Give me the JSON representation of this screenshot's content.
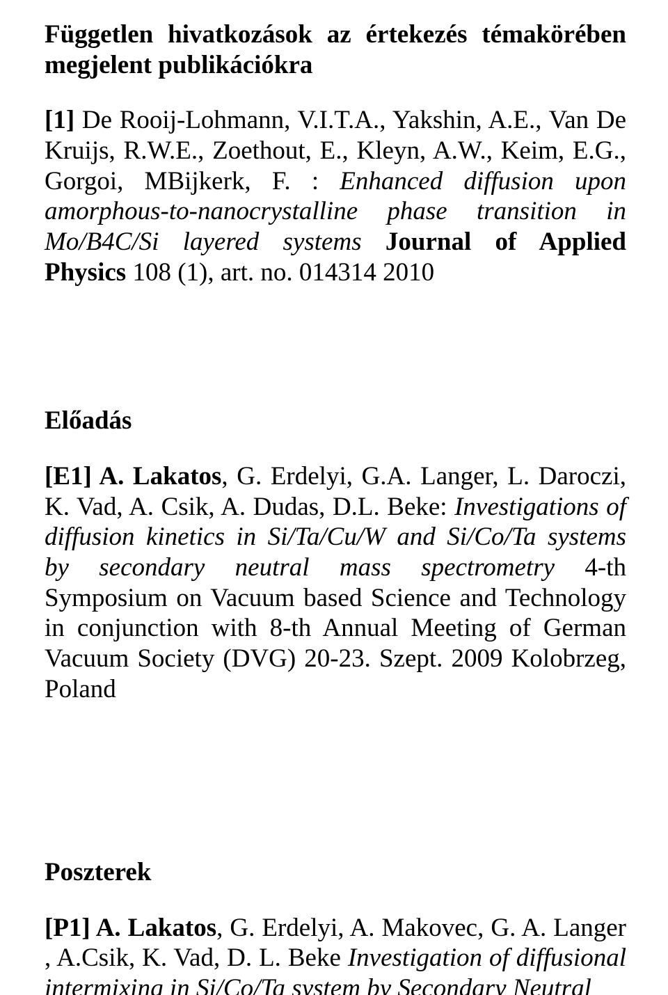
{
  "heading": "Független hivatkozások az értekezés témakörében megjelent publikációkra",
  "ref1": {
    "key": "[1]",
    "authors": " De Rooij-Lohmann, V.I.T.A., Yakshin, A.E., Van De Kruijs, R.W.E., Zoethout, E., Kleyn, A.W., Keim, E.G., Gorgoi, MBijkerk, F. : ",
    "title_italic": "Enhanced diffusion upon amorphous-to-nanocrystalline phase transition in Mo/B4C/Si layered systems",
    "journal_bold": " Journal of Applied Physics",
    "tail": " 108 (1), art. no. 014314 2010"
  },
  "section_presentation": "Előadás",
  "refE1": {
    "key": "[E1] ",
    "authors_bold": "A. Lakatos",
    "authors_rest": ", G. Erdelyi, G.A. Langer, L. Daroczi, K. Vad, A. Csik, A. Dudas, D.L. Beke: ",
    "title_italic": "Investigations of diffusion kinetics in Si/Ta/Cu/W and Si/Co/Ta systems by secondary neutral mass spectrometry",
    "tail": " 4-th Symposium on Vacuum based Science and Technology in conjunction with 8-th Annual Meeting of German Vacuum Society (DVG) 20-23. Szept. 2009 Kolobrzeg, Poland"
  },
  "section_posters": "Poszterek",
  "refP1": {
    "key": "[P1] ",
    "authors_bold": "A. Lakatos",
    "authors_rest": ", G. Erdelyi, A. Makovec, G. A. Langer , A.Csik, K. Vad, D. L. Beke ",
    "title_italic": "Investigation of diffusional intermixing in Si/Co/Ta system by Secondary Neutral"
  }
}
